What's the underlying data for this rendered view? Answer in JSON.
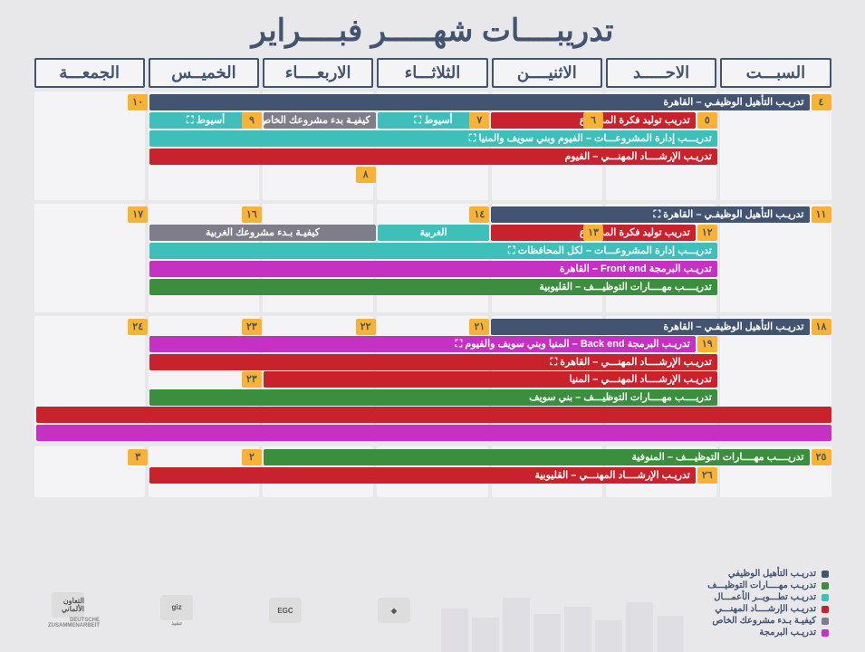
{
  "title": "تدريبــــات شهـــــر فبــــراير",
  "colors": {
    "navy": "#425470",
    "red": "#c8232c",
    "teal": "#3fbfba",
    "gray": "#7e7d89",
    "magenta": "#c531c2",
    "green": "#3a8e3d",
    "orange": "#f9b234",
    "header_bg": "#f4f3f5",
    "page_bg": "#e8e7ea"
  },
  "day_headers": [
    "السبـــت",
    "الاحـــــد",
    "الاثنيــــن",
    "الثلاثـــاء",
    "الاربعــــاء",
    "الخميــس",
    "الجمعـــة"
  ],
  "col_unit_pct": 14.2857,
  "weeks": [
    {
      "min_height": 120,
      "rows": [
        {
          "dates": [
            {
              "col": 0,
              "num": "٤"
            },
            {
              "col": 6,
              "num": "١٠"
            }
          ],
          "bars": [
            {
              "start": 0,
              "span": 6,
              "color": "navy",
              "label": "تدريـب التأهيل الوظيفـي – القاهرة"
            }
          ]
        },
        {
          "dates": [
            {
              "col": 1,
              "num": "٥"
            }
          ],
          "bars": [
            {
              "start": 1,
              "span": 2,
              "color": "red",
              "label": "تدريب توليد فكرة المشروع"
            },
            {
              "start": 3,
              "span": 1,
              "color": "teal",
              "label": "أسيوط ⛶",
              "align": "center"
            },
            {
              "start": 4,
              "span": 1,
              "color": "gray",
              "label": "كيفيـة بدء مشروعك الخاص",
              "align": "center"
            },
            {
              "start": 5,
              "span": 1,
              "color": "teal",
              "label": "أسيوط ⛶",
              "align": "center"
            }
          ],
          "dateboxes_after": [
            {
              "col": 2,
              "num": "٦"
            },
            {
              "col": 3,
              "num": "٧"
            },
            {
              "col": 5,
              "num": "٩"
            }
          ]
        },
        {
          "bars": [
            {
              "start": 1,
              "span": 5,
              "color": "teal",
              "label": "تدريـــب إدارة المشروعـــات – الفيوم وبني سويف والمنيا ⛶"
            }
          ]
        },
        {
          "bars": [
            {
              "start": 1,
              "span": 5,
              "color": "red",
              "label": "تدريـب الإرشــــاد المهنـــي – الفيوم"
            }
          ]
        },
        {
          "dates": [
            {
              "col": 4,
              "num": "٨"
            }
          ]
        }
      ]
    },
    {
      "min_height": 120,
      "rows": [
        {
          "dates": [
            {
              "col": 0,
              "num": "١١"
            },
            {
              "col": 3,
              "num": "١٤"
            },
            {
              "col": 5,
              "num": "١٦"
            },
            {
              "col": 6,
              "num": "١٧"
            }
          ],
          "bars": [
            {
              "start": 0,
              "span": 3,
              "color": "navy",
              "label": "تدريـب التأهيل الوظيفـي – القاهرة ⛶"
            }
          ]
        },
        {
          "dates": [
            {
              "col": 1,
              "num": "١٢"
            }
          ],
          "bars": [
            {
              "start": 1,
              "span": 2,
              "color": "red",
              "label": "تدريب توليد فكرة المشروع"
            },
            {
              "start": 3,
              "span": 1,
              "color": "teal",
              "label": "الغربية",
              "align": "center"
            },
            {
              "start": 4,
              "span": 2,
              "color": "gray",
              "label": "كيفيـة بـدء مشروعك الغربية",
              "align": "center"
            }
          ],
          "dateboxes_after": [
            {
              "col": 2,
              "num": "١٣"
            }
          ]
        },
        {
          "bars": [
            {
              "start": 1,
              "span": 5,
              "color": "teal",
              "label": "تدريـــب إدارة المشروعـــات – لكل المحافظات ⛶"
            }
          ]
        },
        {
          "bars": [
            {
              "start": 1,
              "span": 5,
              "color": "magenta",
              "label": "تدريـب البرمجة Front end – القاهرة"
            }
          ]
        },
        {
          "bars": [
            {
              "start": 1,
              "span": 5,
              "color": "green",
              "label": "تدريــــب مهــــارات التوظيـــف – القليوبية"
            }
          ]
        }
      ]
    },
    {
      "min_height": 140,
      "rows": [
        {
          "dates": [
            {
              "col": 0,
              "num": "١٨"
            },
            {
              "col": 3,
              "num": "٢١"
            },
            {
              "col": 4,
              "num": "٢٢"
            },
            {
              "col": 5,
              "num": "٢٣"
            },
            {
              "col": 6,
              "num": "٢٤"
            }
          ],
          "bars": [
            {
              "start": 0,
              "span": 3,
              "color": "navy",
              "label": "تدريـب التأهيل الوظيفـي – القاهرة"
            }
          ]
        },
        {
          "dates": [
            {
              "col": 1,
              "num": "١٩"
            }
          ],
          "bars": [
            {
              "start": 1,
              "span": 5,
              "color": "magenta",
              "label": "تدريـب البرمجة Back end – المنيا وبني سويف والفيوم ⛶"
            }
          ]
        },
        {
          "bars": [
            {
              "start": 1,
              "span": 5,
              "color": "red",
              "label": "تدريـب الإرشــــاد المهنـــي – القاهرة ⛶"
            }
          ]
        },
        {
          "dates": [
            {
              "col": 5,
              "num": "٢٣"
            }
          ],
          "bars": [
            {
              "start": 1,
              "span": 4,
              "color": "red",
              "label": "تدريـب الإرشــــاد المهنـــي – المنيا"
            }
          ]
        },
        {
          "bars": [
            {
              "start": 1,
              "span": 5,
              "color": "green",
              "label": "تدريــــب مهــــارات التوظيـــف – بني سويف"
            }
          ]
        },
        {
          "bars": [
            {
              "start": 0,
              "span": 7,
              "color": "red",
              "label": ""
            }
          ]
        },
        {
          "bars": [
            {
              "start": 0,
              "span": 7,
              "color": "magenta",
              "label": ""
            }
          ]
        }
      ]
    },
    {
      "min_height": 56,
      "rows": [
        {
          "dates": [
            {
              "col": 0,
              "num": "٢٥"
            },
            {
              "col": 5,
              "num": "٢"
            },
            {
              "col": 6,
              "num": "٣"
            }
          ],
          "bars": [
            {
              "start": 0,
              "span": 5,
              "color": "green",
              "label": "تدريــــب مهــــارات التوظيـــف – المنوفية"
            }
          ]
        },
        {
          "dates": [
            {
              "col": 1,
              "num": "٢٦"
            }
          ],
          "bars": [
            {
              "start": 1,
              "span": 5,
              "color": "red",
              "label": "تدريـب الإرشــــاد المهنـــي – القليوبية"
            }
          ]
        }
      ]
    }
  ],
  "legend": [
    {
      "color": "navy",
      "label": "تدريـب التأهيل الوظيفي"
    },
    {
      "color": "green",
      "label": "تدريـب مهــــارات التوظيـــف"
    },
    {
      "color": "teal",
      "label": "تدريـب تطـــويــر الأعمـــال"
    },
    {
      "color": "red",
      "label": "تدريـب الإرشــــاد المهنـــي"
    },
    {
      "color": "gray",
      "label": "كيفيـة بـدء مشروعك الخاص"
    },
    {
      "color": "magenta",
      "label": "تدريـب البرمجة"
    }
  ],
  "logos": [
    {
      "label": ""
    },
    {
      "label": "EGC"
    },
    {
      "label": "giz",
      "sub": "تنفيذ"
    },
    {
      "label": "التعاون الألماني",
      "sub": "DEUTSCHE ZUSAMMENARBEIT"
    }
  ]
}
